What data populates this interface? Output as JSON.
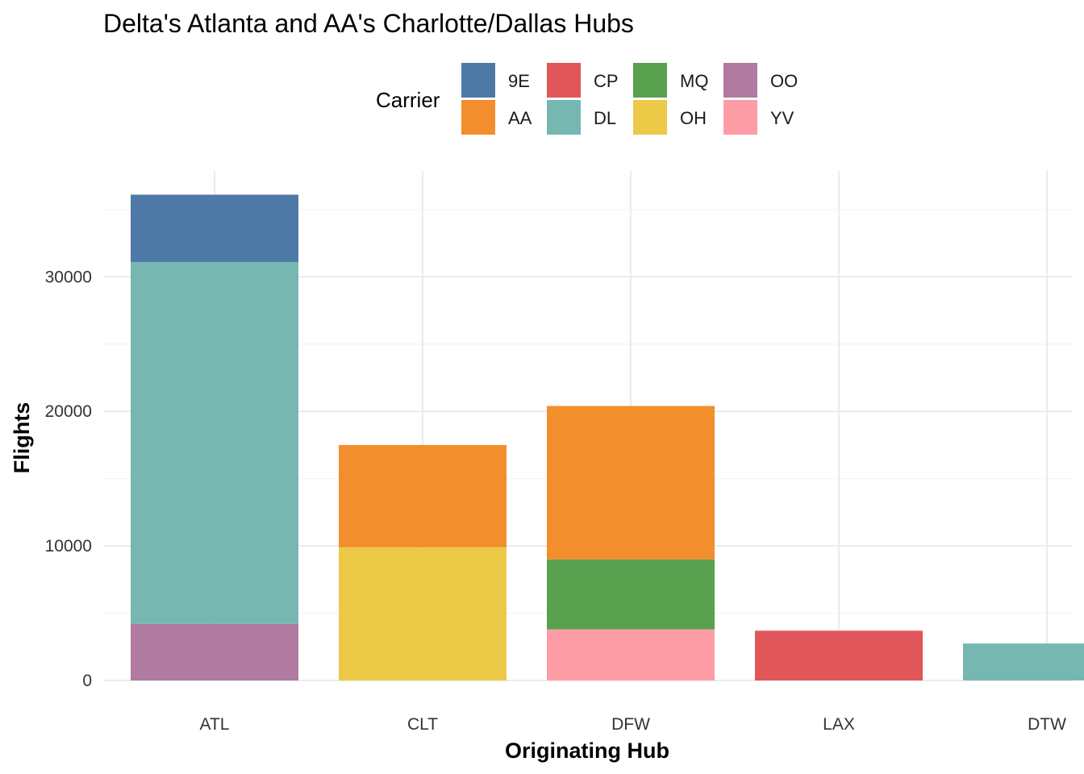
{
  "chart_data": {
    "type": "bar",
    "stacked": true,
    "title": "Delta's Atlanta and AA's Charlotte/Dallas Hubs",
    "xlabel": "Originating Hub",
    "ylabel": "Flights",
    "categories": [
      "ATL",
      "CLT",
      "DFW",
      "LAX",
      "DTW"
    ],
    "ylim": [
      0,
      36000
    ],
    "yticks": [
      0,
      10000,
      20000,
      30000
    ],
    "grid": true,
    "legend": {
      "title": "Carrier",
      "position": "top",
      "entries": [
        "9E",
        "AA",
        "CP",
        "DL",
        "MQ",
        "OH",
        "OO",
        "YV"
      ]
    },
    "stack_order": [
      "OO",
      "OH",
      "YV",
      "DL",
      "MQ",
      "AA",
      "CP",
      "9E"
    ],
    "colors": {
      "9E": "#4e79a7",
      "AA": "#f28e2b",
      "CP": "#e15759",
      "DL": "#76b7b2",
      "MQ": "#59a14f",
      "OH": "#edc948",
      "OO": "#b07aa1",
      "YV": "#ff9da7"
    },
    "series": [
      {
        "name": "9E",
        "values": [
          5000,
          0,
          0,
          0,
          0
        ]
      },
      {
        "name": "AA",
        "values": [
          0,
          7600,
          11400,
          0,
          0
        ]
      },
      {
        "name": "CP",
        "values": [
          0,
          0,
          0,
          3700,
          0
        ]
      },
      {
        "name": "DL",
        "values": [
          26900,
          0,
          0,
          0,
          2750
        ]
      },
      {
        "name": "MQ",
        "values": [
          0,
          0,
          5200,
          0,
          0
        ]
      },
      {
        "name": "OH",
        "values": [
          0,
          9900,
          0,
          0,
          0
        ]
      },
      {
        "name": "OO",
        "values": [
          4200,
          0,
          0,
          0,
          0
        ]
      },
      {
        "name": "YV",
        "values": [
          0,
          0,
          3800,
          0,
          0
        ]
      }
    ]
  }
}
